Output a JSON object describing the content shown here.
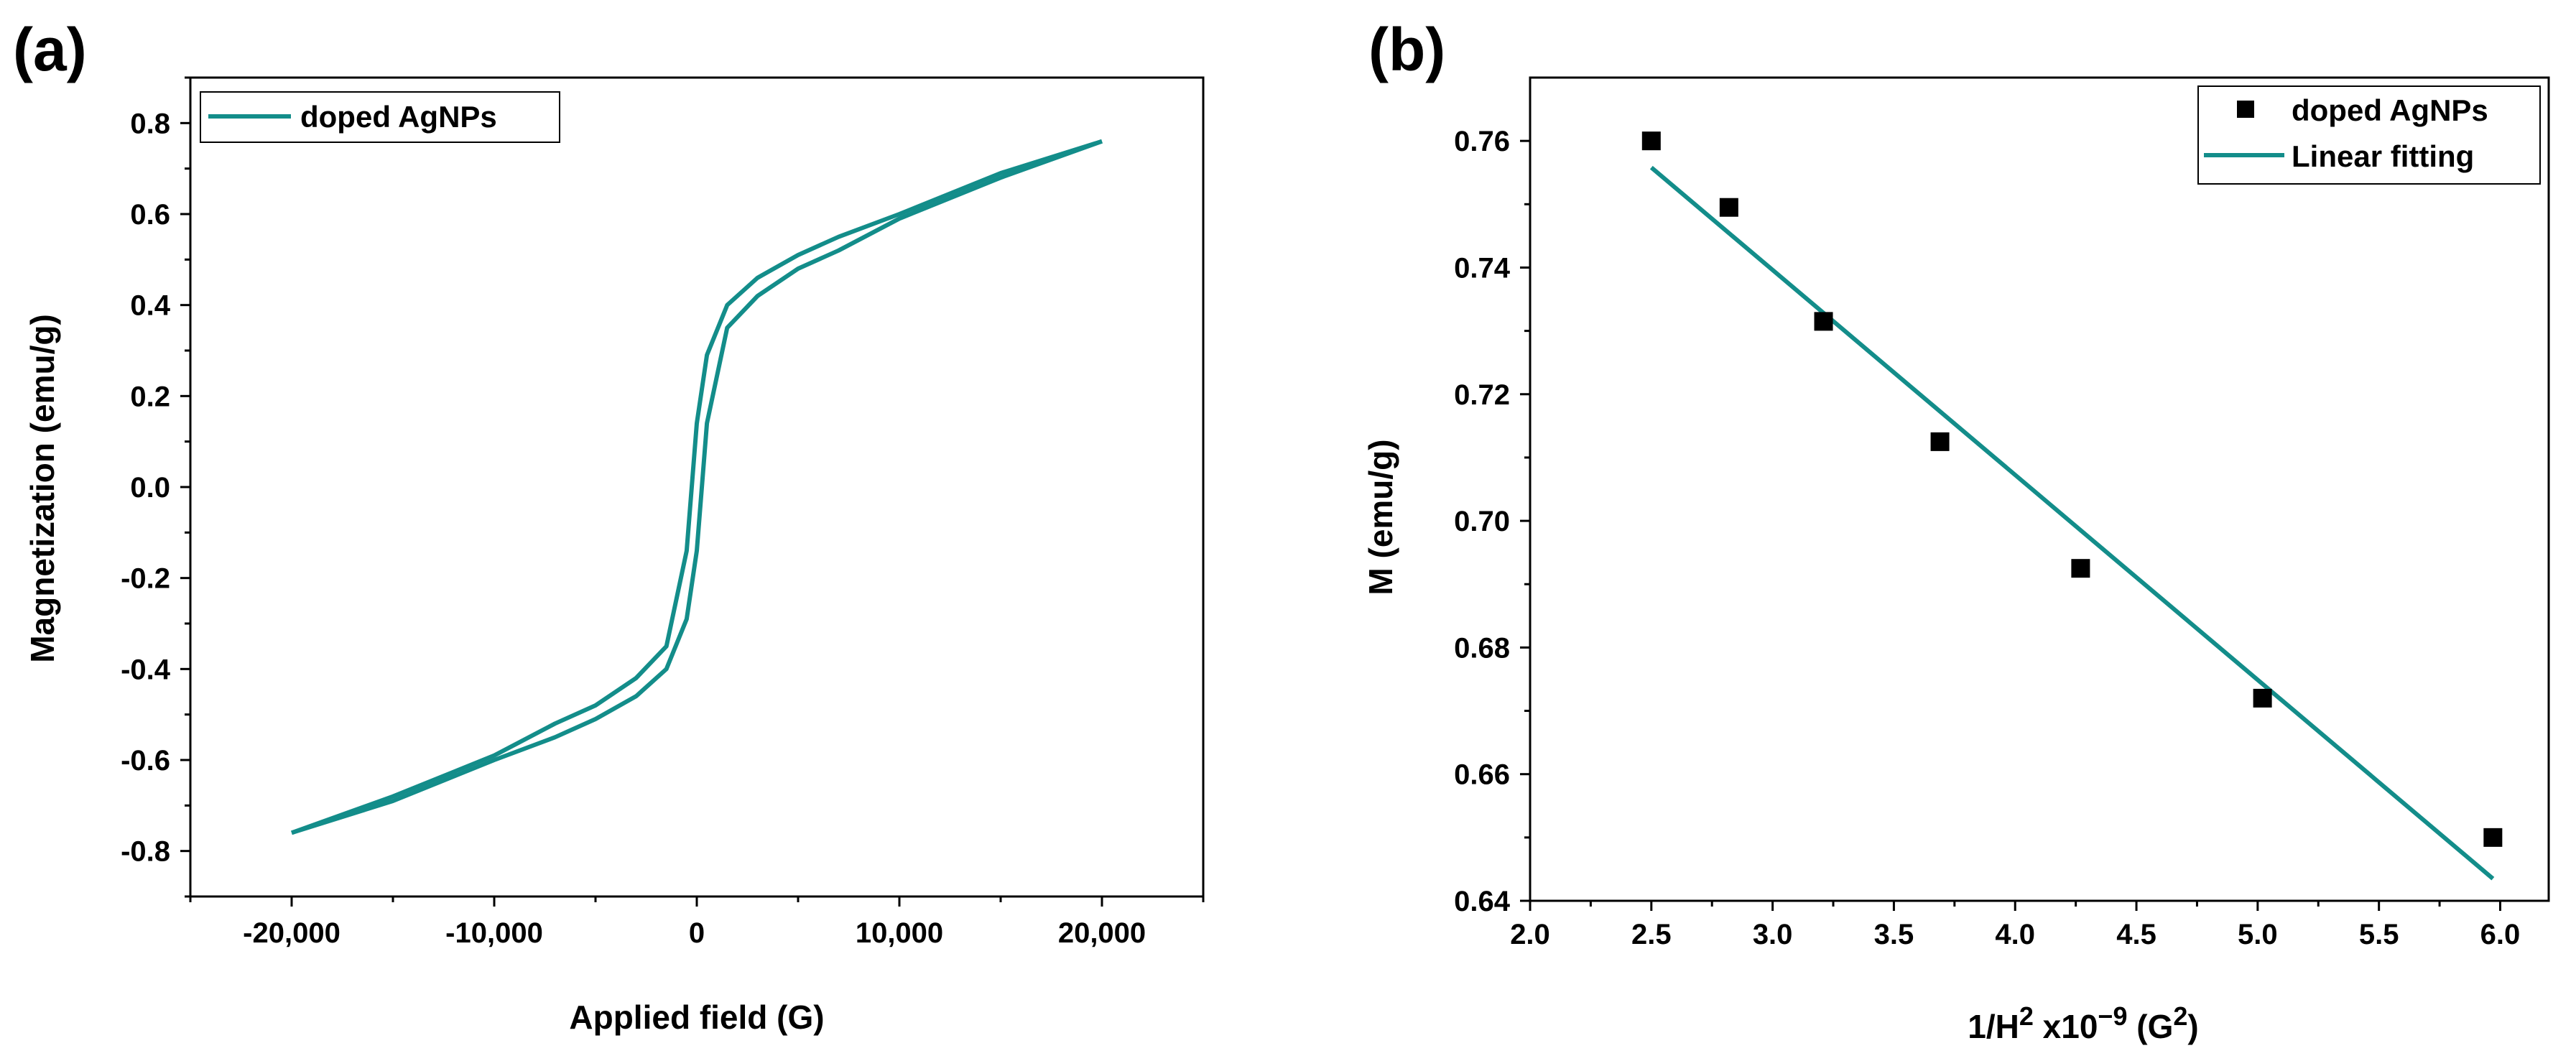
{
  "chart_data": [
    {
      "panel_label": "(a)",
      "type": "line",
      "title": "",
      "xlabel": "Applied field (G)",
      "ylabel": "Magnetization (emu/g)",
      "xlim": [
        -25000,
        25000
      ],
      "ylim": [
        -0.9,
        0.9
      ],
      "xticks": [
        -20000,
        -10000,
        0,
        10000,
        20000
      ],
      "xtick_labels": [
        "-20,000",
        "-10,000",
        "0",
        "10,000",
        "20,000"
      ],
      "yticks": [
        -0.8,
        -0.6,
        -0.4,
        -0.2,
        0.0,
        0.2,
        0.4,
        0.6,
        0.8
      ],
      "ytick_labels": [
        "-0.8",
        "-0.6",
        "-0.4",
        "-0.2",
        "0.0",
        "0.2",
        "0.4",
        "0.6",
        "0.8"
      ],
      "grid": false,
      "legend_position": "top-left",
      "series": [
        {
          "name": "doped AgNPs",
          "color": "#138d8a",
          "descending_branch": {
            "x": [
              20000,
              15000,
              10000,
              7000,
              5000,
              3000,
              1500,
              500,
              0,
              -500,
              -1500,
              -3000,
              -5000,
              -7000,
              -10000,
              -15000,
              -20000
            ],
            "y": [
              0.76,
              0.69,
              0.6,
              0.55,
              0.51,
              0.46,
              0.4,
              0.29,
              0.14,
              -0.14,
              -0.35,
              -0.42,
              -0.48,
              -0.52,
              -0.59,
              -0.68,
              -0.76
            ]
          },
          "ascending_branch": {
            "x": [
              -20000,
              -15000,
              -10000,
              -7000,
              -5000,
              -3000,
              -1500,
              -500,
              0,
              500,
              1500,
              3000,
              5000,
              7000,
              10000,
              15000,
              20000
            ],
            "y": [
              -0.76,
              -0.69,
              -0.6,
              -0.55,
              -0.51,
              -0.46,
              -0.4,
              -0.29,
              -0.14,
              0.14,
              0.35,
              0.42,
              0.48,
              0.52,
              0.59,
              0.68,
              0.76
            ]
          }
        }
      ]
    },
    {
      "panel_label": "(b)",
      "type": "scatter",
      "title": "",
      "xlabel_parts": [
        "1/H",
        "2",
        " x10",
        "−9",
        " (G",
        "2",
        ")"
      ],
      "ylabel": "M (emu/g)",
      "xlim": [
        2.0,
        6.2
      ],
      "ylim": [
        0.64,
        0.77
      ],
      "xticks": [
        2.0,
        2.5,
        3.0,
        3.5,
        4.0,
        4.5,
        5.0,
        5.5,
        6.0
      ],
      "xtick_labels": [
        "2.0",
        "2.5",
        "3.0",
        "3.5",
        "4.0",
        "4.5",
        "5.0",
        "5.5",
        "6.0"
      ],
      "yticks": [
        0.64,
        0.66,
        0.68,
        0.7,
        0.72,
        0.74,
        0.76
      ],
      "ytick_labels": [
        "0.64",
        "0.66",
        "0.68",
        "0.70",
        "0.72",
        "0.74",
        "0.76"
      ],
      "grid": false,
      "legend_position": "top-right",
      "series": [
        {
          "name": "doped AgNPs",
          "kind": "markers",
          "color": "#000000",
          "x": [
            2.5,
            2.82,
            3.21,
            3.69,
            4.27,
            5.02,
            5.97
          ],
          "y": [
            0.76,
            0.7495,
            0.7315,
            0.7125,
            0.6925,
            0.672,
            0.65
          ]
        },
        {
          "name": "Linear fitting",
          "kind": "line",
          "color": "#138d8a",
          "x": [
            2.5,
            5.97
          ],
          "y": [
            0.7558,
            0.6435
          ]
        }
      ]
    }
  ]
}
